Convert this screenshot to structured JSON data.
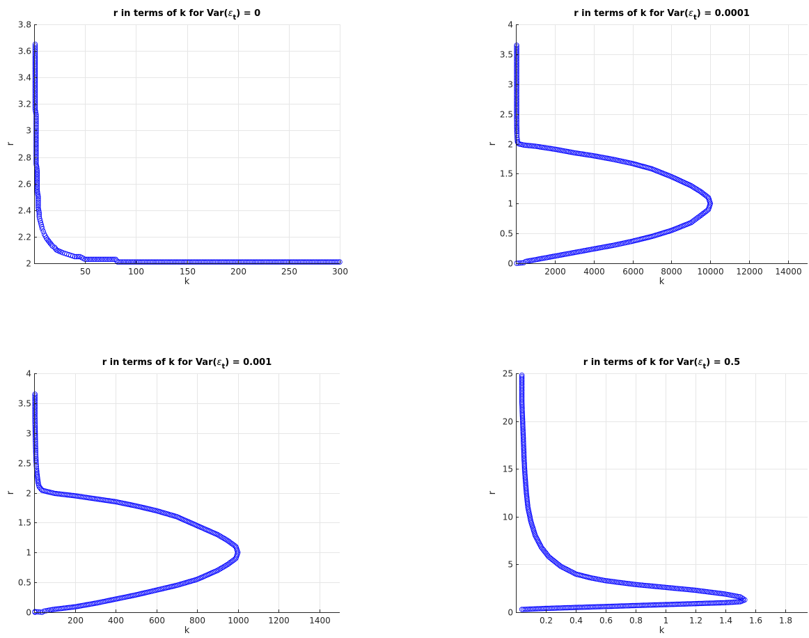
{
  "chart_data": [
    {
      "type": "scatter",
      "title": "r in terms of k for Var(ε_t) = 0",
      "title_prefix": "r in terms of k for Var(",
      "title_symbol": "ε",
      "title_subscript": "t",
      "title_suffix": ") = 0",
      "xlabel": "k",
      "ylabel": "r",
      "xlim": [
        0,
        300
      ],
      "ylim": [
        2,
        3.8
      ],
      "xticks": [
        50,
        100,
        150,
        200,
        250,
        300
      ],
      "yticks": [
        2,
        2.2,
        2.4,
        2.6,
        2.8,
        3,
        3.2,
        3.4,
        3.6,
        3.8
      ],
      "grid": true,
      "marker": "open-circle",
      "color": "#0000ff",
      "series": [
        {
          "x": [
            1,
            1,
            1,
            1,
            1,
            1,
            1,
            1,
            1,
            2,
            2,
            2,
            2,
            2,
            2,
            2,
            2,
            3,
            3,
            3,
            3,
            4,
            4,
            4,
            5,
            5,
            6,
            7,
            8,
            9,
            10,
            12,
            14,
            16,
            18,
            20,
            22,
            25,
            28,
            32,
            36,
            40,
            45,
            50,
            60,
            70,
            80,
            82,
            100,
            150,
            200,
            250,
            300
          ],
          "y": [
            3.65,
            3.57,
            3.5,
            3.43,
            3.37,
            3.31,
            3.26,
            3.21,
            3.16,
            3.12,
            3.08,
            3.0,
            2.95,
            2.9,
            2.85,
            2.8,
            2.75,
            2.7,
            2.65,
            2.6,
            2.55,
            2.5,
            2.46,
            2.42,
            2.38,
            2.35,
            2.32,
            2.29,
            2.26,
            2.24,
            2.22,
            2.19,
            2.17,
            2.15,
            2.13,
            2.12,
            2.1,
            2.09,
            2.08,
            2.07,
            2.06,
            2.05,
            2.05,
            2.03,
            2.03,
            2.03,
            2.03,
            2.01,
            2.01,
            2.01,
            2.01,
            2.01,
            2.01
          ]
        }
      ]
    },
    {
      "type": "scatter",
      "title": "r in terms of k for Var(ε_t) = 0.0001",
      "title_prefix": "r in terms of k for Var(",
      "title_symbol": "ε",
      "title_subscript": "t",
      "title_suffix": ") = 0.0001",
      "xlabel": "k",
      "ylabel": "r",
      "xlim": [
        0,
        15000
      ],
      "ylim": [
        0,
        4
      ],
      "xticks": [
        2000,
        4000,
        6000,
        8000,
        10000,
        12000,
        14000
      ],
      "yticks": [
        0,
        0.5,
        1,
        1.5,
        2,
        2.5,
        3,
        3.5,
        4
      ],
      "grid": true,
      "marker": "open-circle",
      "color": "#0000ff",
      "series": [
        {
          "x": [
            40,
            40,
            45,
            50,
            55,
            60,
            70,
            80,
            100,
            150,
            400,
            1000,
            2000,
            3000,
            4000,
            5000,
            6000,
            7000,
            8000,
            9000,
            9500,
            9900,
            10000,
            9900,
            9500,
            9000,
            8000,
            7000,
            6000,
            5000,
            4000,
            3000,
            2000,
            1000,
            500,
            400,
            40
          ],
          "y": [
            3.65,
            2.45,
            2.28,
            2.2,
            2.14,
            2.1,
            2.07,
            2.04,
            2.02,
            2.0,
            1.98,
            1.96,
            1.91,
            1.85,
            1.8,
            1.74,
            1.67,
            1.58,
            1.45,
            1.3,
            1.2,
            1.1,
            1.0,
            0.9,
            0.8,
            0.68,
            0.55,
            0.45,
            0.37,
            0.3,
            0.24,
            0.18,
            0.12,
            0.06,
            0.03,
            0.01,
            0.0
          ]
        }
      ]
    },
    {
      "type": "scatter",
      "title": "r in terms of k for Var(ε_t) = 0.001",
      "title_prefix": "r in terms of k for Var(",
      "title_symbol": "ε",
      "title_subscript": "t",
      "title_suffix": ") = 0.001",
      "xlabel": "k",
      "ylabel": "r",
      "xlim": [
        0,
        1500
      ],
      "ylim": [
        0,
        4
      ],
      "xticks": [
        200,
        400,
        600,
        800,
        1000,
        1200,
        1400
      ],
      "yticks": [
        0,
        0.5,
        1,
        1.5,
        2,
        2.5,
        3,
        3.5,
        4
      ],
      "grid": true,
      "marker": "open-circle",
      "color": "#0000ff",
      "series": [
        {
          "x": [
            4,
            4,
            5,
            6,
            7,
            8,
            9,
            10,
            12,
            14,
            17,
            20,
            25,
            40,
            100,
            200,
            300,
            400,
            500,
            600,
            700,
            800,
            900,
            950,
            990,
            1000,
            990,
            950,
            900,
            800,
            700,
            600,
            500,
            400,
            300,
            200,
            100,
            50,
            40,
            4,
            4
          ],
          "y": [
            3.65,
            3.3,
            3.1,
            2.92,
            2.8,
            2.68,
            2.58,
            2.5,
            2.4,
            2.32,
            2.24,
            2.16,
            2.1,
            2.04,
            1.99,
            1.95,
            1.9,
            1.85,
            1.78,
            1.7,
            1.6,
            1.45,
            1.3,
            1.2,
            1.1,
            1.0,
            0.9,
            0.8,
            0.7,
            0.55,
            0.45,
            0.37,
            0.29,
            0.22,
            0.15,
            0.09,
            0.05,
            0.02,
            0.0,
            0.01,
            0.0
          ]
        }
      ]
    },
    {
      "type": "scatter",
      "title": "r in terms of k for Var(ε_t) = 0.5",
      "title_prefix": "r in terms of k for Var(",
      "title_symbol": "ε",
      "title_subscript": "t",
      "title_suffix": ") = 0.5",
      "xlabel": "k",
      "ylabel": "r",
      "xlim": [
        0,
        1.95
      ],
      "ylim": [
        0,
        25
      ],
      "xticks": [
        0.2,
        0.4,
        0.6,
        0.8,
        1,
        1.2,
        1.4,
        1.6,
        1.8
      ],
      "yticks": [
        0,
        5,
        10,
        15,
        20,
        25
      ],
      "grid": true,
      "marker": "open-circle",
      "color": "#0000ff",
      "series": [
        {
          "x": [
            0.04,
            0.04,
            0.045,
            0.05,
            0.055,
            0.06,
            0.07,
            0.08,
            0.1,
            0.13,
            0.17,
            0.22,
            0.3,
            0.4,
            0.5,
            0.6,
            0.7,
            0.8,
            0.9,
            1.0,
            1.1,
            1.2,
            1.3,
            1.4,
            1.5,
            1.53,
            1.5,
            1.4,
            1.2,
            1.0,
            0.8,
            0.6,
            0.4,
            0.2,
            0.05,
            0.04
          ],
          "y": [
            24.8,
            22,
            20,
            18,
            16,
            14.5,
            12.5,
            11,
            9.5,
            8,
            6.8,
            5.8,
            4.8,
            4.0,
            3.6,
            3.3,
            3.1,
            2.9,
            2.75,
            2.6,
            2.45,
            2.3,
            2.1,
            1.9,
            1.6,
            1.3,
            1.1,
            1.0,
            0.9,
            0.8,
            0.7,
            0.6,
            0.5,
            0.4,
            0.3,
            0.3
          ]
        }
      ]
    }
  ]
}
